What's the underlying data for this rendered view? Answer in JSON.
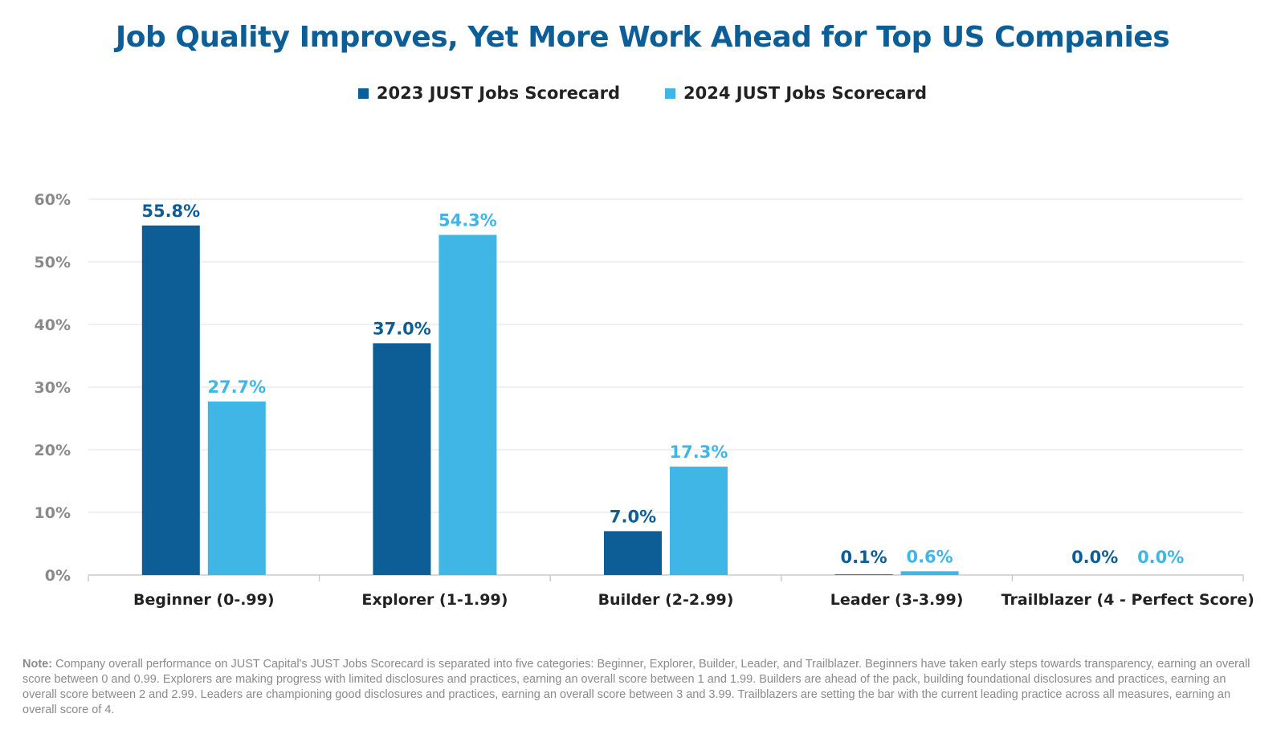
{
  "chart_data": {
    "type": "bar",
    "title": "Job Quality Improves, Yet More Work Ahead for Top US Companies",
    "categories": [
      "Beginner (0-.99)",
      "Explorer (1-1.99)",
      "Builder (2-2.99)",
      "Leader (3-3.99)",
      "Trailblazer (4 - Perfect Score)"
    ],
    "series": [
      {
        "name": "2023 JUST Jobs Scorecard",
        "values": [
          55.8,
          37.0,
          7.0,
          0.1,
          0.0
        ],
        "labels": [
          "55.8%",
          "37.0%",
          "7.0%",
          "0.1%",
          "0.0%"
        ],
        "color": "#0d5e96"
      },
      {
        "name": "2024 JUST Jobs Scorecard",
        "values": [
          27.7,
          54.3,
          17.3,
          0.6,
          0.0
        ],
        "labels": [
          "27.7%",
          "54.3%",
          "17.3%",
          "0.6%",
          "0.0%"
        ],
        "color": "#3fb6e6"
      }
    ],
    "ylim": [
      0,
      60
    ],
    "yticks": [
      "0%",
      "10%",
      "20%",
      "30%",
      "40%",
      "50%",
      "60%"
    ],
    "ytick_values": [
      0,
      10,
      20,
      30,
      40,
      50,
      60
    ],
    "grid": true,
    "legend_position": "top-center",
    "xlabel": "",
    "ylabel": ""
  },
  "note": {
    "label": "Note:",
    "text": " Company overall performance on JUST Capital's JUST Jobs Scorecard is separated into five categories: Beginner, Explorer, Builder, Leader, and Trailblazer. Beginners have taken early steps towards transparency, earning an overall score between 0 and 0.99. Explorers are making progress with limited disclosures and practices, earning an overall score between 1 and 1.99. Builders are ahead of the pack, building foundational disclosures and practices, earning an overall score between 2 and 2.99. Leaders are championing good disclosures and practices, earning an overall score between 3 and 3.99. Trailblazers are setting the bar with the current leading practice across all measures, earning an overall score of 4."
  },
  "colors": {
    "title": "#0d5e96",
    "grid": "#e2e2e2",
    "tick_text": "#8a8a8a",
    "category_text": "#222222"
  }
}
